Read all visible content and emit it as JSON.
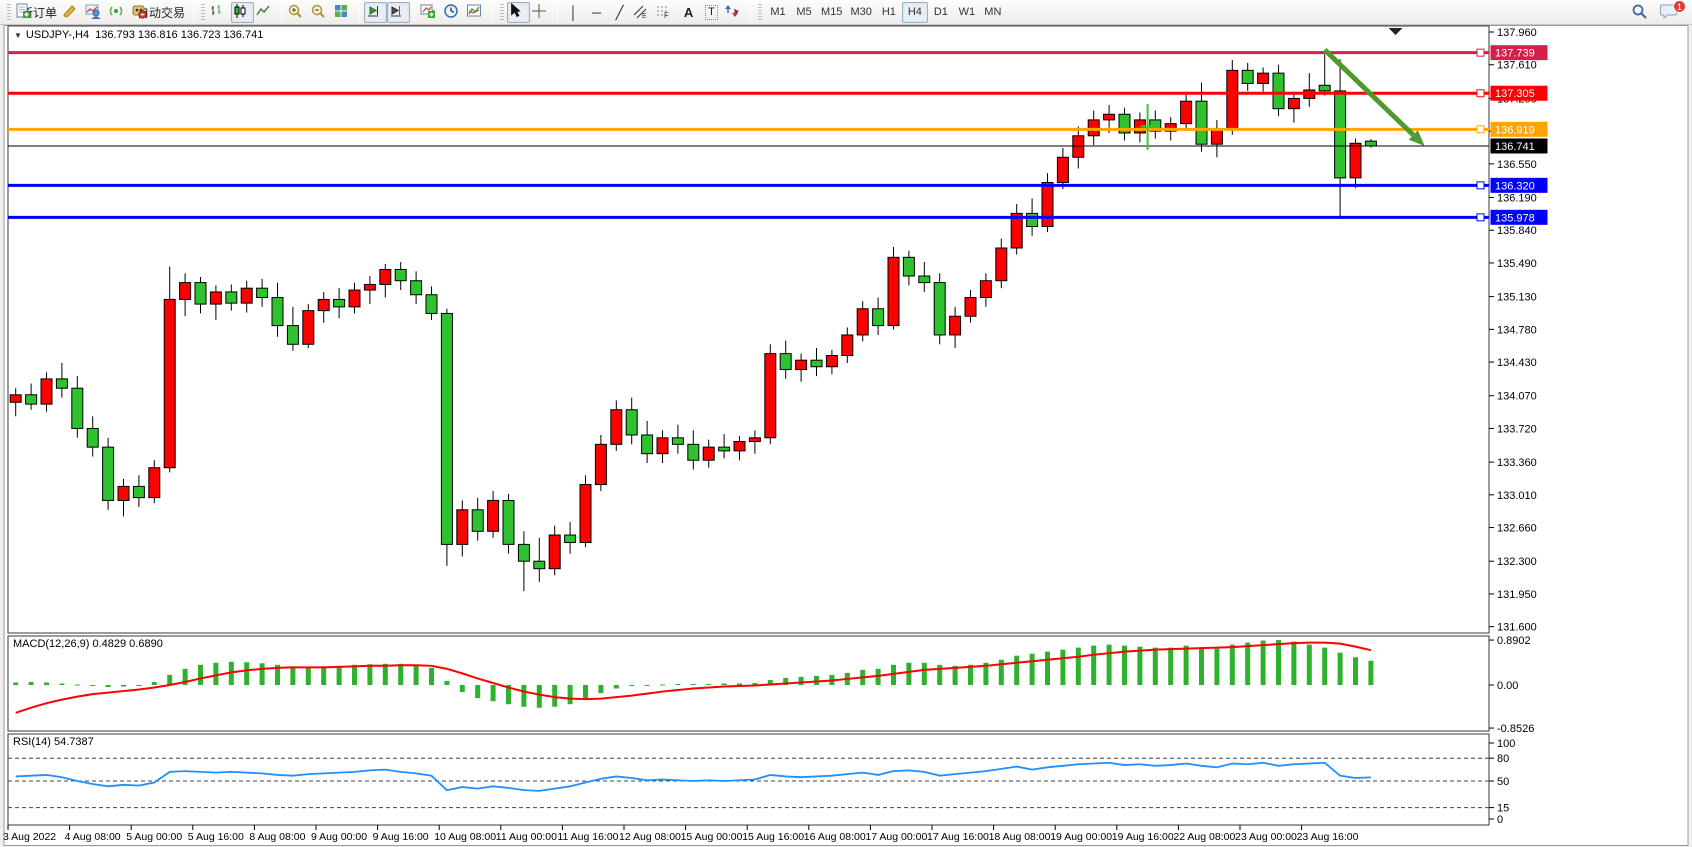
{
  "toolbar": {
    "new_order_label": "新订单",
    "auto_trading_label": "自动交易",
    "timeframes": [
      "M1",
      "M5",
      "M15",
      "M30",
      "H1",
      "H4",
      "D1",
      "W1",
      "MN"
    ],
    "active_timeframe": "H4",
    "notification_count": "1",
    "glyphs": {
      "caret": "▾",
      "vline": "│",
      "hline": "─",
      "trendline": "╱",
      "crosshair": "+",
      "text_tool": "A",
      "label_tool": "T",
      "channel_letter": "E",
      "fibo_letter": "F"
    }
  },
  "chart": {
    "collapse_glyph": "▼",
    "symbol_period": "USDJPY-,H4",
    "ohlc_text": "136.793 136.816 136.723 136.741",
    "macd_label": "MACD(12,26,9)",
    "macd_values": "0.4829 0.6890",
    "rsi_label": "RSI(14)",
    "rsi_value": "54.7387"
  },
  "chart_data": [
    {
      "type": "candlestick",
      "title": "USDJPY-,H4 136.793 136.816 136.723 136.741",
      "symbol": "USDJPY-",
      "timeframe": "H4",
      "up_color": "#ff0000",
      "down_color": "#2ec22e",
      "wick_color": "#000000",
      "y_axis_ticks": [
        137.96,
        137.61,
        137.25,
        136.9,
        136.55,
        136.19,
        135.84,
        135.49,
        135.13,
        134.78,
        134.43,
        134.07,
        133.72,
        133.36,
        133.01,
        132.66,
        132.3,
        131.95,
        131.6
      ],
      "ylim": [
        131.53,
        138.02
      ],
      "x_labels": [
        "3 Aug 2022",
        "4 Aug 08:00",
        "5 Aug 00:00",
        "5 Aug 16:00",
        "8 Aug 08:00",
        "9 Aug 00:00",
        "9 Aug 16:00",
        "10 Aug 08:00",
        "11 Aug 00:00",
        "11 Aug 16:00",
        "12 Aug 08:00",
        "15 Aug 00:00",
        "15 Aug 16:00",
        "16 Aug 08:00",
        "17 Aug 00:00",
        "17 Aug 16:00",
        "18 Aug 08:00",
        "19 Aug 00:00",
        "19 Aug 16:00",
        "22 Aug 08:00",
        "23 Aug 00:00",
        "23 Aug 16:00"
      ],
      "bars_per_label": 4,
      "hlines": [
        {
          "price": 137.739,
          "color": "#d6204a",
          "width": 3
        },
        {
          "price": 137.305,
          "color": "#ff0000",
          "width": 3
        },
        {
          "price": 136.919,
          "color": "#ffa500",
          "width": 3
        },
        {
          "price": 136.32,
          "color": "#0000ff",
          "width": 3
        },
        {
          "price": 135.978,
          "color": "#0000ff",
          "width": 3
        }
      ],
      "bid_line": {
        "price": 136.741,
        "color": "#000000",
        "badge_color": "#000000"
      },
      "arrow": {
        "from_bar": 85,
        "from_price": 137.77,
        "to_bar": 91.5,
        "to_price": 136.74,
        "color": "#4e9a2e"
      },
      "cross_marker": {
        "bar": 73.5,
        "price_top": 137.19,
        "price_bottom": 136.7,
        "price_mid": 136.95,
        "color": "#32cd32"
      },
      "shift_marker": {
        "bar": 89.6
      },
      "candles": [
        [
          134.0,
          134.15,
          133.85,
          134.08
        ],
        [
          134.08,
          134.2,
          133.92,
          133.98
        ],
        [
          133.98,
          134.32,
          133.9,
          134.25
        ],
        [
          134.25,
          134.42,
          134.05,
          134.15
        ],
        [
          134.15,
          134.28,
          133.62,
          133.72
        ],
        [
          133.72,
          133.85,
          133.42,
          133.52
        ],
        [
          133.52,
          133.62,
          132.85,
          132.95
        ],
        [
          132.95,
          133.18,
          132.78,
          133.1
        ],
        [
          133.1,
          133.22,
          132.88,
          132.98
        ],
        [
          132.98,
          133.38,
          132.92,
          133.3
        ],
        [
          133.3,
          135.45,
          133.25,
          135.1
        ],
        [
          135.1,
          135.38,
          134.92,
          135.28
        ],
        [
          135.28,
          135.34,
          134.95,
          135.05
        ],
        [
          135.05,
          135.25,
          134.88,
          135.18
        ],
        [
          135.18,
          135.26,
          134.98,
          135.06
        ],
        [
          135.06,
          135.3,
          134.96,
          135.22
        ],
        [
          135.22,
          135.32,
          135.02,
          135.12
        ],
        [
          135.12,
          135.28,
          134.7,
          134.82
        ],
        [
          134.82,
          135.02,
          134.55,
          134.62
        ],
        [
          134.62,
          135.05,
          134.58,
          134.98
        ],
        [
          134.98,
          135.18,
          134.85,
          135.1
        ],
        [
          135.1,
          135.22,
          134.9,
          135.02
        ],
        [
          135.02,
          135.28,
          134.95,
          135.2
        ],
        [
          135.2,
          135.35,
          135.05,
          135.26
        ],
        [
          135.26,
          135.48,
          135.12,
          135.42
        ],
        [
          135.42,
          135.5,
          135.2,
          135.3
        ],
        [
          135.3,
          135.4,
          135.05,
          135.15
        ],
        [
          135.15,
          135.24,
          134.88,
          134.95
        ],
        [
          134.95,
          135.0,
          132.25,
          132.48
        ],
        [
          132.48,
          132.95,
          132.35,
          132.85
        ],
        [
          132.85,
          132.98,
          132.52,
          132.62
        ],
        [
          132.62,
          133.05,
          132.55,
          132.95
        ],
        [
          132.95,
          133.02,
          132.38,
          132.48
        ],
        [
          132.48,
          132.62,
          131.98,
          132.3
        ],
        [
          132.3,
          132.55,
          132.08,
          132.22
        ],
        [
          132.22,
          132.68,
          132.15,
          132.58
        ],
        [
          132.58,
          132.72,
          132.38,
          132.5
        ],
        [
          132.5,
          133.22,
          132.45,
          133.12
        ],
        [
          133.12,
          133.65,
          133.05,
          133.55
        ],
        [
          133.55,
          134.02,
          133.48,
          133.92
        ],
        [
          133.92,
          134.05,
          133.55,
          133.65
        ],
        [
          133.65,
          133.8,
          133.35,
          133.45
        ],
        [
          133.45,
          133.7,
          133.35,
          133.62
        ],
        [
          133.62,
          133.76,
          133.45,
          133.55
        ],
        [
          133.55,
          133.7,
          133.28,
          133.38
        ],
        [
          133.38,
          133.6,
          133.3,
          133.52
        ],
        [
          133.52,
          133.66,
          133.4,
          133.48
        ],
        [
          133.48,
          133.64,
          133.38,
          133.58
        ],
        [
          133.58,
          133.7,
          133.45,
          133.62
        ],
        [
          133.62,
          134.62,
          133.55,
          134.52
        ],
        [
          134.52,
          134.66,
          134.25,
          134.35
        ],
        [
          134.35,
          134.52,
          134.22,
          134.45
        ],
        [
          134.45,
          134.58,
          134.28,
          134.38
        ],
        [
          134.38,
          134.56,
          134.3,
          134.5
        ],
        [
          134.5,
          134.8,
          134.42,
          134.72
        ],
        [
          134.72,
          135.08,
          134.65,
          135.0
        ],
        [
          135.0,
          135.12,
          134.72,
          134.82
        ],
        [
          134.82,
          135.66,
          134.78,
          135.55
        ],
        [
          135.55,
          135.62,
          135.25,
          135.35
        ],
        [
          135.35,
          135.5,
          135.18,
          135.28
        ],
        [
          135.28,
          135.38,
          134.62,
          134.72
        ],
        [
          134.72,
          135.02,
          134.58,
          134.92
        ],
        [
          134.92,
          135.2,
          134.85,
          135.12
        ],
        [
          135.12,
          135.38,
          135.02,
          135.3
        ],
        [
          135.3,
          135.75,
          135.22,
          135.65
        ],
        [
          135.65,
          136.12,
          135.58,
          136.02
        ],
        [
          136.02,
          136.18,
          135.78,
          135.88
        ],
        [
          135.88,
          136.45,
          135.82,
          136.35
        ],
        [
          136.35,
          136.72,
          136.28,
          136.62
        ],
        [
          136.62,
          136.95,
          136.5,
          136.85
        ],
        [
          136.85,
          137.12,
          136.75,
          137.02
        ],
        [
          137.02,
          137.18,
          136.88,
          137.08
        ],
        [
          137.08,
          137.15,
          136.8,
          136.88
        ],
        [
          136.88,
          137.1,
          136.78,
          137.02
        ],
        [
          137.02,
          137.12,
          136.82,
          136.9
        ],
        [
          136.9,
          137.05,
          136.8,
          136.98
        ],
        [
          136.98,
          137.3,
          136.92,
          137.22
        ],
        [
          137.22,
          137.42,
          136.68,
          136.76
        ],
        [
          136.76,
          137.02,
          136.62,
          136.92
        ],
        [
          136.92,
          137.66,
          136.86,
          137.55
        ],
        [
          137.55,
          137.63,
          137.33,
          137.41
        ],
        [
          137.41,
          137.58,
          137.32,
          137.52
        ],
        [
          137.52,
          137.61,
          137.06,
          137.14
        ],
        [
          137.14,
          137.31,
          136.99,
          137.25
        ],
        [
          137.25,
          137.52,
          137.16,
          137.34
        ],
        [
          137.39,
          137.72,
          137.28,
          137.33
        ],
        [
          137.33,
          137.67,
          135.96,
          136.4
        ],
        [
          136.4,
          136.82,
          136.29,
          136.77
        ],
        [
          136.793,
          136.816,
          136.723,
          136.741
        ]
      ]
    },
    {
      "type": "macd-histogram",
      "label": "MACD(12,26,9)",
      "main_value": "0.4829",
      "signal_value": "0.6890",
      "histogram_color": "#2db22d",
      "signal_color": "#ff0000",
      "y_ticks": [
        0.8902,
        0.0,
        -0.8526
      ],
      "histogram": [
        0.05,
        0.06,
        0.05,
        0.03,
        0.01,
        -0.02,
        -0.04,
        -0.03,
        0.0,
        0.06,
        0.2,
        0.32,
        0.4,
        0.44,
        0.46,
        0.45,
        0.43,
        0.4,
        0.37,
        0.36,
        0.37,
        0.38,
        0.4,
        0.41,
        0.42,
        0.42,
        0.4,
        0.34,
        0.08,
        -0.14,
        -0.26,
        -0.32,
        -0.38,
        -0.43,
        -0.45,
        -0.43,
        -0.38,
        -0.28,
        -0.16,
        -0.07,
        -0.02,
        0.0,
        0.01,
        0.02,
        0.02,
        0.02,
        0.03,
        0.03,
        0.04,
        0.1,
        0.14,
        0.16,
        0.18,
        0.2,
        0.24,
        0.3,
        0.32,
        0.4,
        0.44,
        0.44,
        0.4,
        0.38,
        0.4,
        0.44,
        0.5,
        0.58,
        0.62,
        0.66,
        0.7,
        0.74,
        0.78,
        0.8,
        0.78,
        0.76,
        0.74,
        0.74,
        0.78,
        0.74,
        0.72,
        0.8,
        0.84,
        0.88,
        0.89,
        0.86,
        0.8,
        0.74,
        0.64,
        0.55,
        0.48
      ],
      "signal": [
        -0.55,
        -0.45,
        -0.36,
        -0.29,
        -0.23,
        -0.18,
        -0.15,
        -0.12,
        -0.09,
        -0.05,
        0.0,
        0.06,
        0.13,
        0.19,
        0.25,
        0.29,
        0.32,
        0.34,
        0.35,
        0.35,
        0.35,
        0.36,
        0.37,
        0.38,
        0.38,
        0.39,
        0.39,
        0.38,
        0.32,
        0.23,
        0.13,
        0.04,
        -0.05,
        -0.13,
        -0.19,
        -0.24,
        -0.27,
        -0.28,
        -0.27,
        -0.24,
        -0.21,
        -0.17,
        -0.13,
        -0.1,
        -0.07,
        -0.05,
        -0.03,
        -0.02,
        -0.01,
        0.01,
        0.03,
        0.05,
        0.07,
        0.09,
        0.12,
        0.15,
        0.18,
        0.22,
        0.26,
        0.3,
        0.32,
        0.34,
        0.36,
        0.38,
        0.41,
        0.44,
        0.47,
        0.5,
        0.53,
        0.56,
        0.6,
        0.63,
        0.66,
        0.68,
        0.7,
        0.71,
        0.72,
        0.73,
        0.74,
        0.75,
        0.77,
        0.79,
        0.81,
        0.83,
        0.84,
        0.84,
        0.82,
        0.76,
        0.689
      ]
    },
    {
      "type": "rsi-line",
      "label": "RSI(14)",
      "value": "54.7387",
      "line_color": "#1e90ff",
      "y_ticks": [
        100,
        80,
        50,
        15,
        0
      ],
      "levels": [
        80,
        50,
        15
      ],
      "values": [
        56,
        57,
        58,
        55,
        50,
        46,
        43,
        45,
        44,
        48,
        62,
        63,
        62,
        61,
        62,
        61,
        60,
        58,
        57,
        59,
        60,
        61,
        62,
        64,
        65,
        62,
        60,
        57,
        38,
        42,
        40,
        43,
        41,
        38,
        37,
        40,
        43,
        48,
        53,
        56,
        54,
        51,
        52,
        51,
        50,
        51,
        50,
        51,
        52,
        58,
        56,
        55,
        56,
        57,
        59,
        61,
        58,
        63,
        64,
        62,
        57,
        59,
        61,
        63,
        66,
        69,
        65,
        68,
        70,
        72,
        73,
        74,
        71,
        72,
        70,
        71,
        73,
        70,
        68,
        73,
        72,
        74,
        70,
        72,
        73,
        74,
        57,
        54,
        54.74
      ]
    }
  ]
}
